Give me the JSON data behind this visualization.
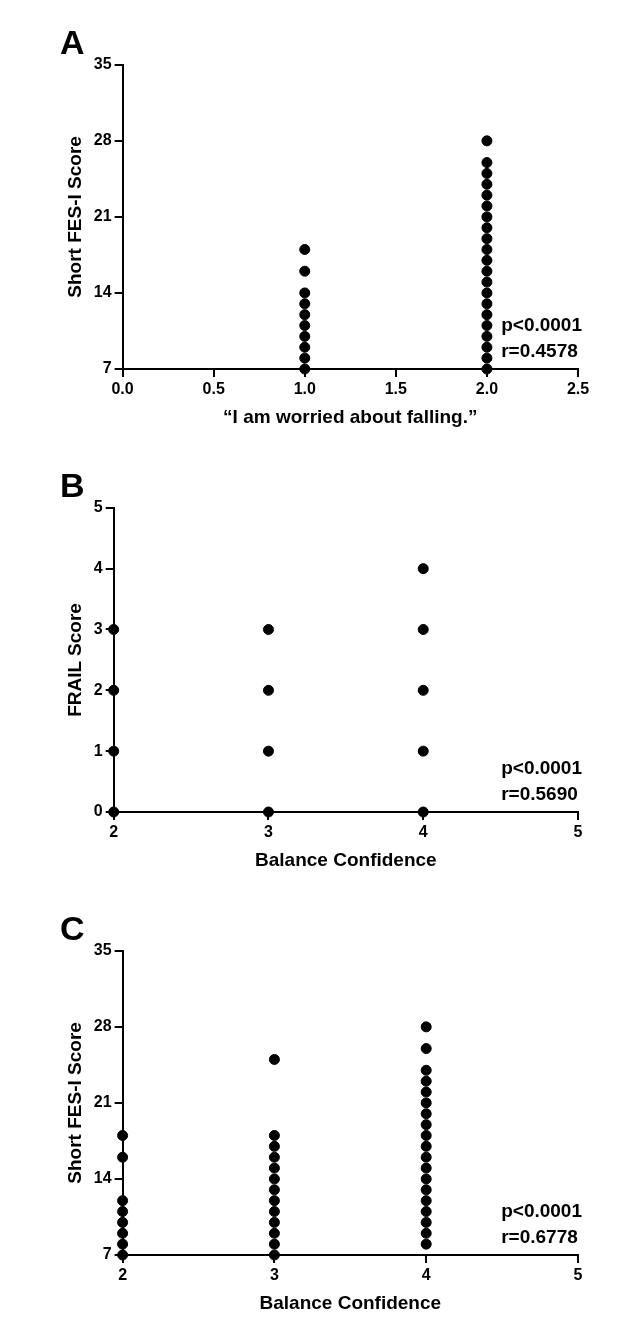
{
  "chart_data": [
    {
      "type": "scatter",
      "title": "A",
      "xlabel": "“I am worried about falling.”",
      "ylabel": "Short FES-I Score",
      "color": "#000000",
      "marker": "circle",
      "grid": false,
      "legend": false,
      "x": [
        1,
        1,
        1,
        1,
        1,
        1,
        1,
        1,
        1,
        1,
        2,
        2,
        2,
        2,
        2,
        2,
        2,
        2,
        2,
        2,
        2,
        2,
        2,
        2,
        2,
        2,
        2,
        2,
        2,
        2,
        2
      ],
      "values": [
        18,
        16,
        14,
        13,
        12,
        11,
        10,
        9,
        8,
        7,
        28,
        26,
        25,
        24,
        23,
        22,
        21,
        20,
        19,
        18,
        17,
        16,
        15,
        14,
        13,
        12,
        11,
        10,
        9,
        8,
        7
      ],
      "xlim": [
        0,
        2.5
      ],
      "xticks": [
        {
          "value": 0,
          "label": "0.0"
        },
        {
          "value": 0.5,
          "label": "0.5"
        },
        {
          "value": 1,
          "label": "1.0"
        },
        {
          "value": 1.5,
          "label": "1.5"
        },
        {
          "value": 2,
          "label": "2.0"
        },
        {
          "value": 2.5,
          "label": "2.5"
        }
      ],
      "ylim": [
        7,
        35
      ],
      "yticks": [
        7,
        14,
        21,
        28,
        35
      ],
      "annotations": [
        "p<0.0001",
        "r=0.4578"
      ]
    },
    {
      "type": "scatter",
      "title": "B",
      "xlabel": "Balance Confidence",
      "ylabel": "FRAIL Score",
      "color": "#000000",
      "marker": "circle",
      "grid": false,
      "legend": false,
      "x": [
        2,
        2,
        2,
        2,
        3,
        3,
        3,
        3,
        4,
        4,
        4,
        4,
        4
      ],
      "values": [
        0,
        1,
        2,
        3,
        0,
        1,
        2,
        3,
        0,
        1,
        2,
        3,
        4
      ],
      "xlim": [
        2,
        5
      ],
      "xticks": [
        2,
        3,
        4,
        5
      ],
      "ylim": [
        0,
        5
      ],
      "yticks": [
        0,
        1,
        2,
        3,
        4,
        5
      ],
      "annotations": [
        "p<0.0001",
        "r=0.5690"
      ]
    },
    {
      "type": "scatter",
      "title": "C",
      "xlabel": "Balance Confidence",
      "ylabel": "Short FES-I Score",
      "color": "#000000",
      "marker": "circle",
      "grid": false,
      "legend": false,
      "x": [
        2,
        2,
        2,
        2,
        2,
        2,
        2,
        2,
        3,
        3,
        3,
        3,
        3,
        3,
        3,
        3,
        3,
        3,
        3,
        3,
        3,
        4,
        4,
        4,
        4,
        4,
        4,
        4,
        4,
        4,
        4,
        4,
        4,
        4,
        4,
        4,
        4,
        4,
        4,
        4
      ],
      "values": [
        18,
        16,
        12,
        11,
        10,
        9,
        8,
        7,
        25,
        18,
        17,
        16,
        15,
        14,
        13,
        12,
        11,
        10,
        9,
        8,
        7,
        28,
        26,
        24,
        23,
        22,
        21,
        20,
        19,
        18,
        17,
        16,
        15,
        14,
        13,
        12,
        11,
        10,
        9,
        8
      ],
      "xlim": [
        2,
        5
      ],
      "xticks": [
        2,
        3,
        4,
        5
      ],
      "ylim": [
        7,
        35
      ],
      "yticks": [
        7,
        14,
        21,
        28,
        35
      ],
      "annotations": [
        "p<0.0001",
        "r=0.6778"
      ]
    }
  ]
}
